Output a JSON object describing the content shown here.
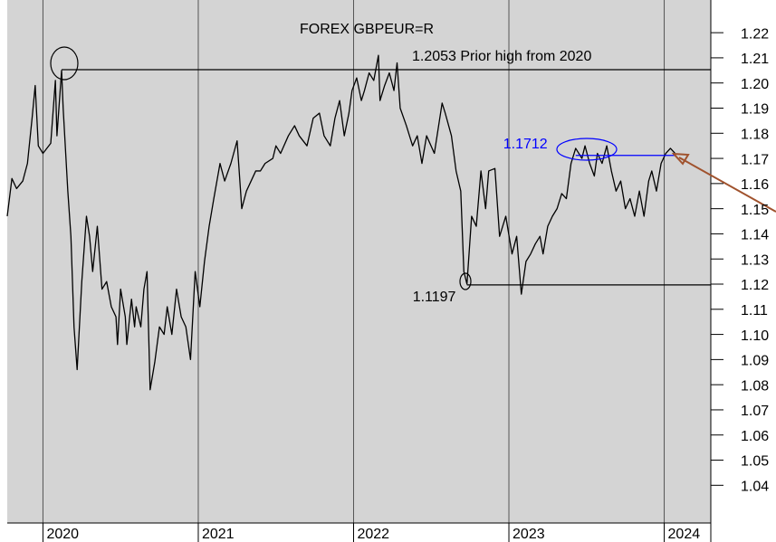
{
  "chart_data": {
    "type": "line",
    "title": "FOREX GBPEUR=R",
    "color": "#000000",
    "x": [
      2019.77,
      2019.8,
      2019.83,
      2019.87,
      2019.9,
      2019.93,
      2019.95,
      2019.97,
      2020.0,
      2020.05,
      2020.08,
      2020.09,
      2020.12,
      2020.13,
      2020.16,
      2020.18,
      2020.2,
      2020.22,
      2020.25,
      2020.28,
      2020.3,
      2020.32,
      2020.35,
      2020.38,
      2020.41,
      2020.44,
      2020.47,
      2020.48,
      2020.5,
      2020.53,
      2020.54,
      2020.57,
      2020.59,
      2020.6,
      2020.63,
      2020.65,
      2020.67,
      2020.69,
      2020.72,
      2020.75,
      2020.78,
      2020.8,
      2020.83,
      2020.86,
      2020.89,
      2020.92,
      2020.95,
      2020.98,
      2021.01,
      2021.04,
      2021.07,
      2021.1,
      2021.14,
      2021.17,
      2021.21,
      2021.25,
      2021.28,
      2021.31,
      2021.34,
      2021.37,
      2021.4,
      2021.43,
      2021.48,
      2021.5,
      2021.53,
      2021.58,
      2021.62,
      2021.65,
      2021.7,
      2021.74,
      2021.78,
      2021.81,
      2021.85,
      2021.88,
      2021.91,
      2021.94,
      2021.97,
      2021.99,
      2022.02,
      2022.05,
      2022.07,
      2022.1,
      2022.13,
      2022.16,
      2022.17,
      2022.2,
      2022.23,
      2022.26,
      2022.28,
      2022.3,
      2022.34,
      2022.38,
      2022.41,
      2022.44,
      2022.47,
      2022.52,
      2022.57,
      2022.59,
      2022.63,
      2022.66,
      2022.69,
      2022.71,
      2022.73,
      2022.76,
      2022.79,
      2022.82,
      2022.85,
      2022.87,
      2022.91,
      2022.94,
      2022.98,
      2023.02,
      2023.05,
      2023.08,
      2023.11,
      2023.14,
      2023.17,
      2023.2,
      2023.22,
      2023.25,
      2023.28,
      2023.31,
      2023.34,
      2023.37,
      2023.4,
      2023.43,
      2023.47,
      2023.49,
      2023.52,
      2023.55,
      2023.57,
      2023.6,
      2023.63,
      2023.66,
      2023.69,
      2023.72,
      2023.75,
      2023.78,
      2023.81,
      2023.84,
      2023.87,
      2023.9,
      2023.92,
      2023.95,
      2023.98,
      2024.01,
      2024.04,
      2024.07
    ],
    "values": [
      1.147,
      1.162,
      1.158,
      1.161,
      1.168,
      1.186,
      1.199,
      1.175,
      1.172,
      1.176,
      1.201,
      1.179,
      1.205,
      1.19,
      1.157,
      1.139,
      1.103,
      1.086,
      1.121,
      1.147,
      1.139,
      1.125,
      1.143,
      1.118,
      1.121,
      1.111,
      1.107,
      1.096,
      1.118,
      1.107,
      1.096,
      1.114,
      1.103,
      1.111,
      1.103,
      1.118,
      1.125,
      1.078,
      1.089,
      1.103,
      1.1,
      1.111,
      1.1,
      1.118,
      1.107,
      1.103,
      1.09,
      1.125,
      1.111,
      1.129,
      1.143,
      1.154,
      1.168,
      1.161,
      1.168,
      1.177,
      1.15,
      1.157,
      1.161,
      1.165,
      1.165,
      1.168,
      1.17,
      1.175,
      1.172,
      1.179,
      1.183,
      1.179,
      1.175,
      1.186,
      1.188,
      1.179,
      1.175,
      1.186,
      1.193,
      1.179,
      1.188,
      1.197,
      1.202,
      1.193,
      1.197,
      1.204,
      1.201,
      1.211,
      1.193,
      1.199,
      1.204,
      1.197,
      1.208,
      1.19,
      1.183,
      1.175,
      1.179,
      1.168,
      1.179,
      1.172,
      1.192,
      1.188,
      1.179,
      1.165,
      1.157,
      1.125,
      1.12,
      1.147,
      1.143,
      1.165,
      1.15,
      1.165,
      1.166,
      1.139,
      1.147,
      1.132,
      1.139,
      1.116,
      1.129,
      1.132,
      1.136,
      1.139,
      1.132,
      1.143,
      1.147,
      1.15,
      1.156,
      1.154,
      1.168,
      1.174,
      1.17,
      1.175,
      1.168,
      1.163,
      1.172,
      1.168,
      1.175,
      1.165,
      1.157,
      1.161,
      1.15,
      1.154,
      1.147,
      1.157,
      1.147,
      1.161,
      1.165,
      1.157,
      1.168,
      1.172,
      1.174,
      1.172
    ],
    "xlim": [
      2019.77,
      2024.3
    ],
    "xticks": [
      2020,
      2021,
      2022,
      2023,
      2024
    ],
    "ylim": [
      1.025,
      1.233
    ],
    "yticks": [
      {
        "value": 1.04,
        "label": "1.04"
      },
      {
        "value": 1.05,
        "label": "1.05"
      },
      {
        "value": 1.06,
        "label": "1.06"
      },
      {
        "value": 1.07,
        "label": "1.07"
      },
      {
        "value": 1.08,
        "label": "1.08"
      },
      {
        "value": 1.09,
        "label": "1.09"
      },
      {
        "value": 1.1,
        "label": "1.10"
      },
      {
        "value": 1.11,
        "label": "1.11"
      },
      {
        "value": 1.12,
        "label": "1.12"
      },
      {
        "value": 1.13,
        "label": "1.13"
      },
      {
        "value": 1.14,
        "label": "1.14"
      },
      {
        "value": 1.15,
        "label": "1.15"
      },
      {
        "value": 1.16,
        "label": "1.16"
      },
      {
        "value": 1.17,
        "label": "1.17"
      },
      {
        "value": 1.18,
        "label": "1.18"
      },
      {
        "value": 1.19,
        "label": "1.19"
      },
      {
        "value": 1.2,
        "label": "1.20"
      },
      {
        "value": 1.21,
        "label": "1.21"
      },
      {
        "value": 1.22,
        "label": "1.22"
      }
    ],
    "grid": true,
    "levels": [
      {
        "value": 1.2053,
        "text": "1.2053 Prior high from 2020",
        "from": 2020.12,
        "color": "#000000"
      },
      {
        "value": 1.1712,
        "from": 2023.43,
        "to": 2024.07,
        "color": "#0000ff"
      },
      {
        "value": 1.1197,
        "from": 2022.73,
        "color": "#000000"
      }
    ]
  }
}
